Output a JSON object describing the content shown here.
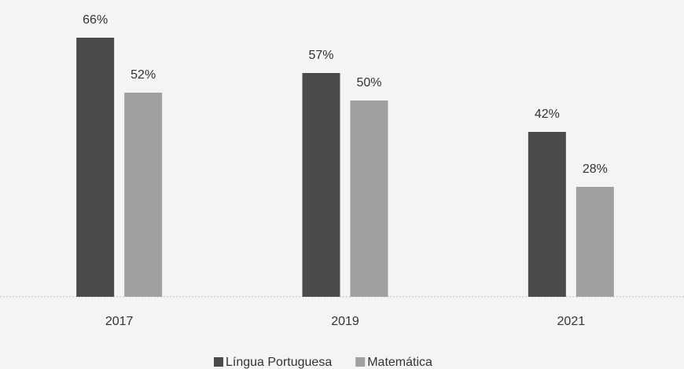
{
  "chart_data": {
    "type": "bar",
    "categories": [
      "2017",
      "2019",
      "2021"
    ],
    "series": [
      {
        "name": "Língua Portuguesa",
        "color": "#4a4a4a",
        "values": [
          66,
          57,
          42
        ],
        "value_labels": [
          "66%",
          "57%",
          "42%"
        ]
      },
      {
        "name": "Matemática",
        "color": "#a0a0a0",
        "values": [
          52,
          50,
          28
        ],
        "value_labels": [
          "52%",
          "50%",
          "28%"
        ]
      }
    ],
    "legend": "bottom"
  }
}
